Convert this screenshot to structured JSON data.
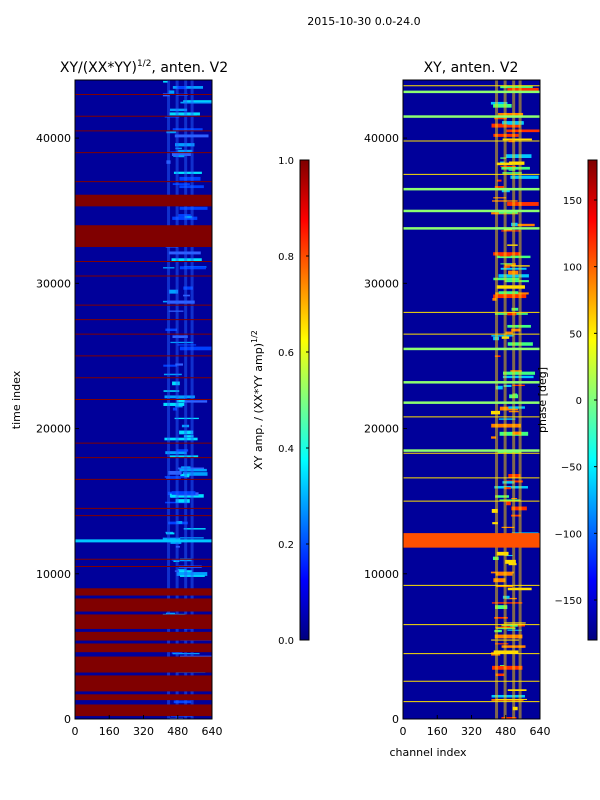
{
  "suptitle": "2015-10-30 0.0-24.0",
  "colors": {
    "jet": [
      "#00007f",
      "#0000ff",
      "#007fff",
      "#00ffff",
      "#7fff7f",
      "#ffff00",
      "#ff7f00",
      "#ff0000",
      "#7f0000"
    ],
    "deep_red": "#800000",
    "deep_blue": "#00009a",
    "cyan": "#00c8ff",
    "green": "#8cff70",
    "yellow": "#ffe000"
  },
  "chart_data": [
    {
      "type": "heatmap",
      "title_main": "XY/(XX*YY)",
      "title_sup": "1/2",
      "title_rest": ", anten. V2",
      "xlabel": "",
      "ylabel": "time index",
      "xlim": [
        0,
        640
      ],
      "ylim": [
        0,
        44000
      ],
      "xticks": [
        0,
        160,
        320,
        480,
        640
      ],
      "yticks": [
        0,
        10000,
        20000,
        30000,
        40000
      ],
      "saturated_time_bands": [
        [
          200,
          1000
        ],
        [
          1300,
          1700
        ],
        [
          1900,
          3000
        ],
        [
          3200,
          4300
        ],
        [
          4600,
          5200
        ],
        [
          5400,
          6000
        ],
        [
          6200,
          7200
        ],
        [
          7400,
          8300
        ],
        [
          8500,
          9000
        ],
        [
          32500,
          34000
        ],
        [
          35300,
          36100
        ]
      ],
      "flag_lines_time": [
        10500,
        11000,
        14000,
        14500,
        16500,
        18000,
        19000,
        22000,
        23500,
        25000,
        26500,
        27500,
        28500,
        30500,
        31500,
        37000,
        39000,
        40500,
        41500,
        43000
      ],
      "bright_line_time": 12300,
      "colorbar": {
        "label_main": "XY amp. / (XX*YY amp)",
        "label_sup": "1/2",
        "range": [
          0.0,
          1.0
        ],
        "ticks": [
          "0.0",
          "0.2",
          "0.4",
          "0.6",
          "0.8",
          "1.0"
        ]
      }
    },
    {
      "type": "heatmap",
      "title": "XY, anten. V2",
      "xlabel": "channel index",
      "ylabel": "",
      "xlim": [
        0,
        640
      ],
      "ylim": [
        0,
        44000
      ],
      "xticks": [
        0,
        160,
        320,
        480,
        640
      ],
      "yticks": [
        0,
        10000,
        20000,
        30000,
        40000
      ],
      "green_flag_lines_time": [
        18500,
        21800,
        23200,
        25500,
        33800,
        35000,
        36500,
        41500,
        43200
      ],
      "yellow_flag_lines_time": [
        1200,
        2600,
        4500,
        6500,
        9200,
        15000,
        16600,
        18300,
        20800,
        26500,
        28000,
        37500,
        39800,
        43600
      ],
      "red_band_time": [
        11800,
        12800
      ],
      "colorbar": {
        "label": "phase [deg]",
        "range": [
          -180,
          180
        ],
        "ticks": [
          "150",
          "100",
          "50",
          "0",
          "−50",
          "−100",
          "−150"
        ]
      }
    }
  ]
}
